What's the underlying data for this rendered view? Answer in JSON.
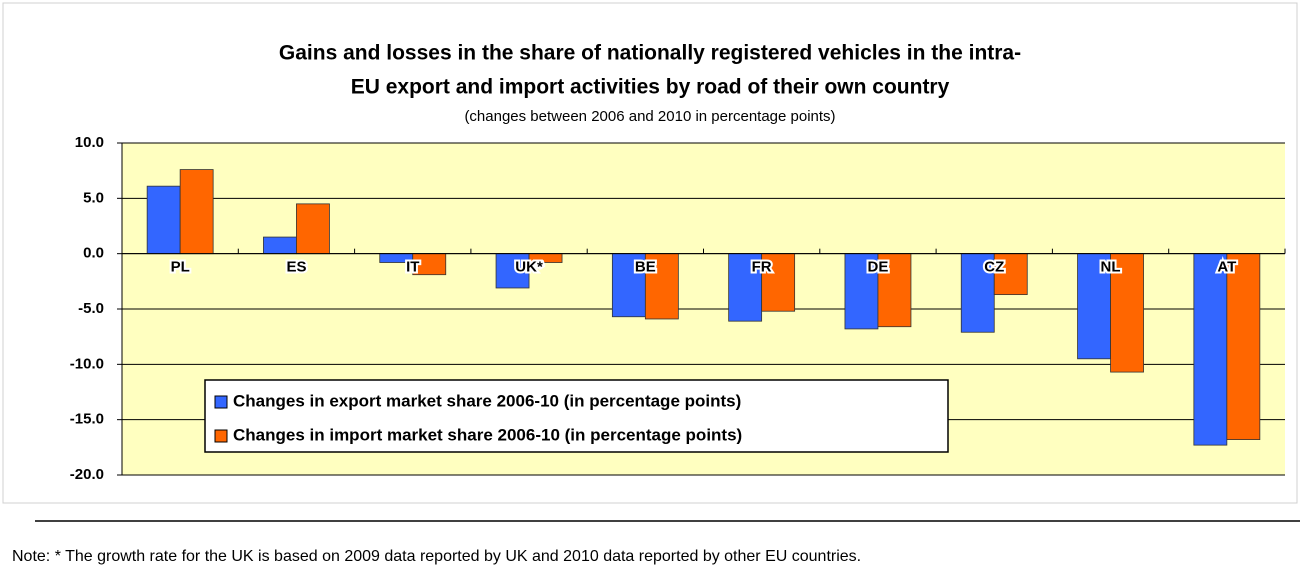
{
  "chart_data": {
    "type": "bar",
    "title": [
      "Gains and losses in the share of nationally registered vehicles in the intra-",
      "EU export and import activities by road of their own country"
    ],
    "subtitle": "(changes between 2006 and 2010 in percentage points)",
    "categories": [
      "PL",
      "ES",
      "IT",
      "UK*",
      "BE",
      "FR",
      "DE",
      "CZ",
      "NL",
      "AT"
    ],
    "series": [
      {
        "name": "Changes in export market share 2006-10 (in percentage points)",
        "color": "#3366ff",
        "values": [
          6.1,
          1.5,
          -0.8,
          -3.1,
          -5.7,
          -6.1,
          -6.8,
          -7.1,
          -9.5,
          -17.3
        ]
      },
      {
        "name": "Changes in import market share 2006-10 (in percentage points)",
        "color": "#ff6600",
        "values": [
          7.6,
          4.5,
          -1.9,
          -0.8,
          -5.9,
          -5.2,
          -6.6,
          -3.7,
          -10.7,
          -16.8
        ]
      }
    ],
    "ylim": [
      -20,
      10
    ],
    "yticks": [
      {
        "value": 10,
        "label": "10.0"
      },
      {
        "value": 5,
        "label": "5.0"
      },
      {
        "value": 0,
        "label": "0.0"
      },
      {
        "value": -5,
        "label": "-5.0"
      },
      {
        "value": -10,
        "label": "-10.0"
      },
      {
        "value": -15,
        "label": "-15.0"
      },
      {
        "value": -20,
        "label": "-20.0"
      }
    ],
    "grid": true,
    "legend_position": "lower left",
    "note": "Note: * The growth rate for the UK is based on 2009 data reported by UK and 2010 data reported by other EU countries."
  }
}
